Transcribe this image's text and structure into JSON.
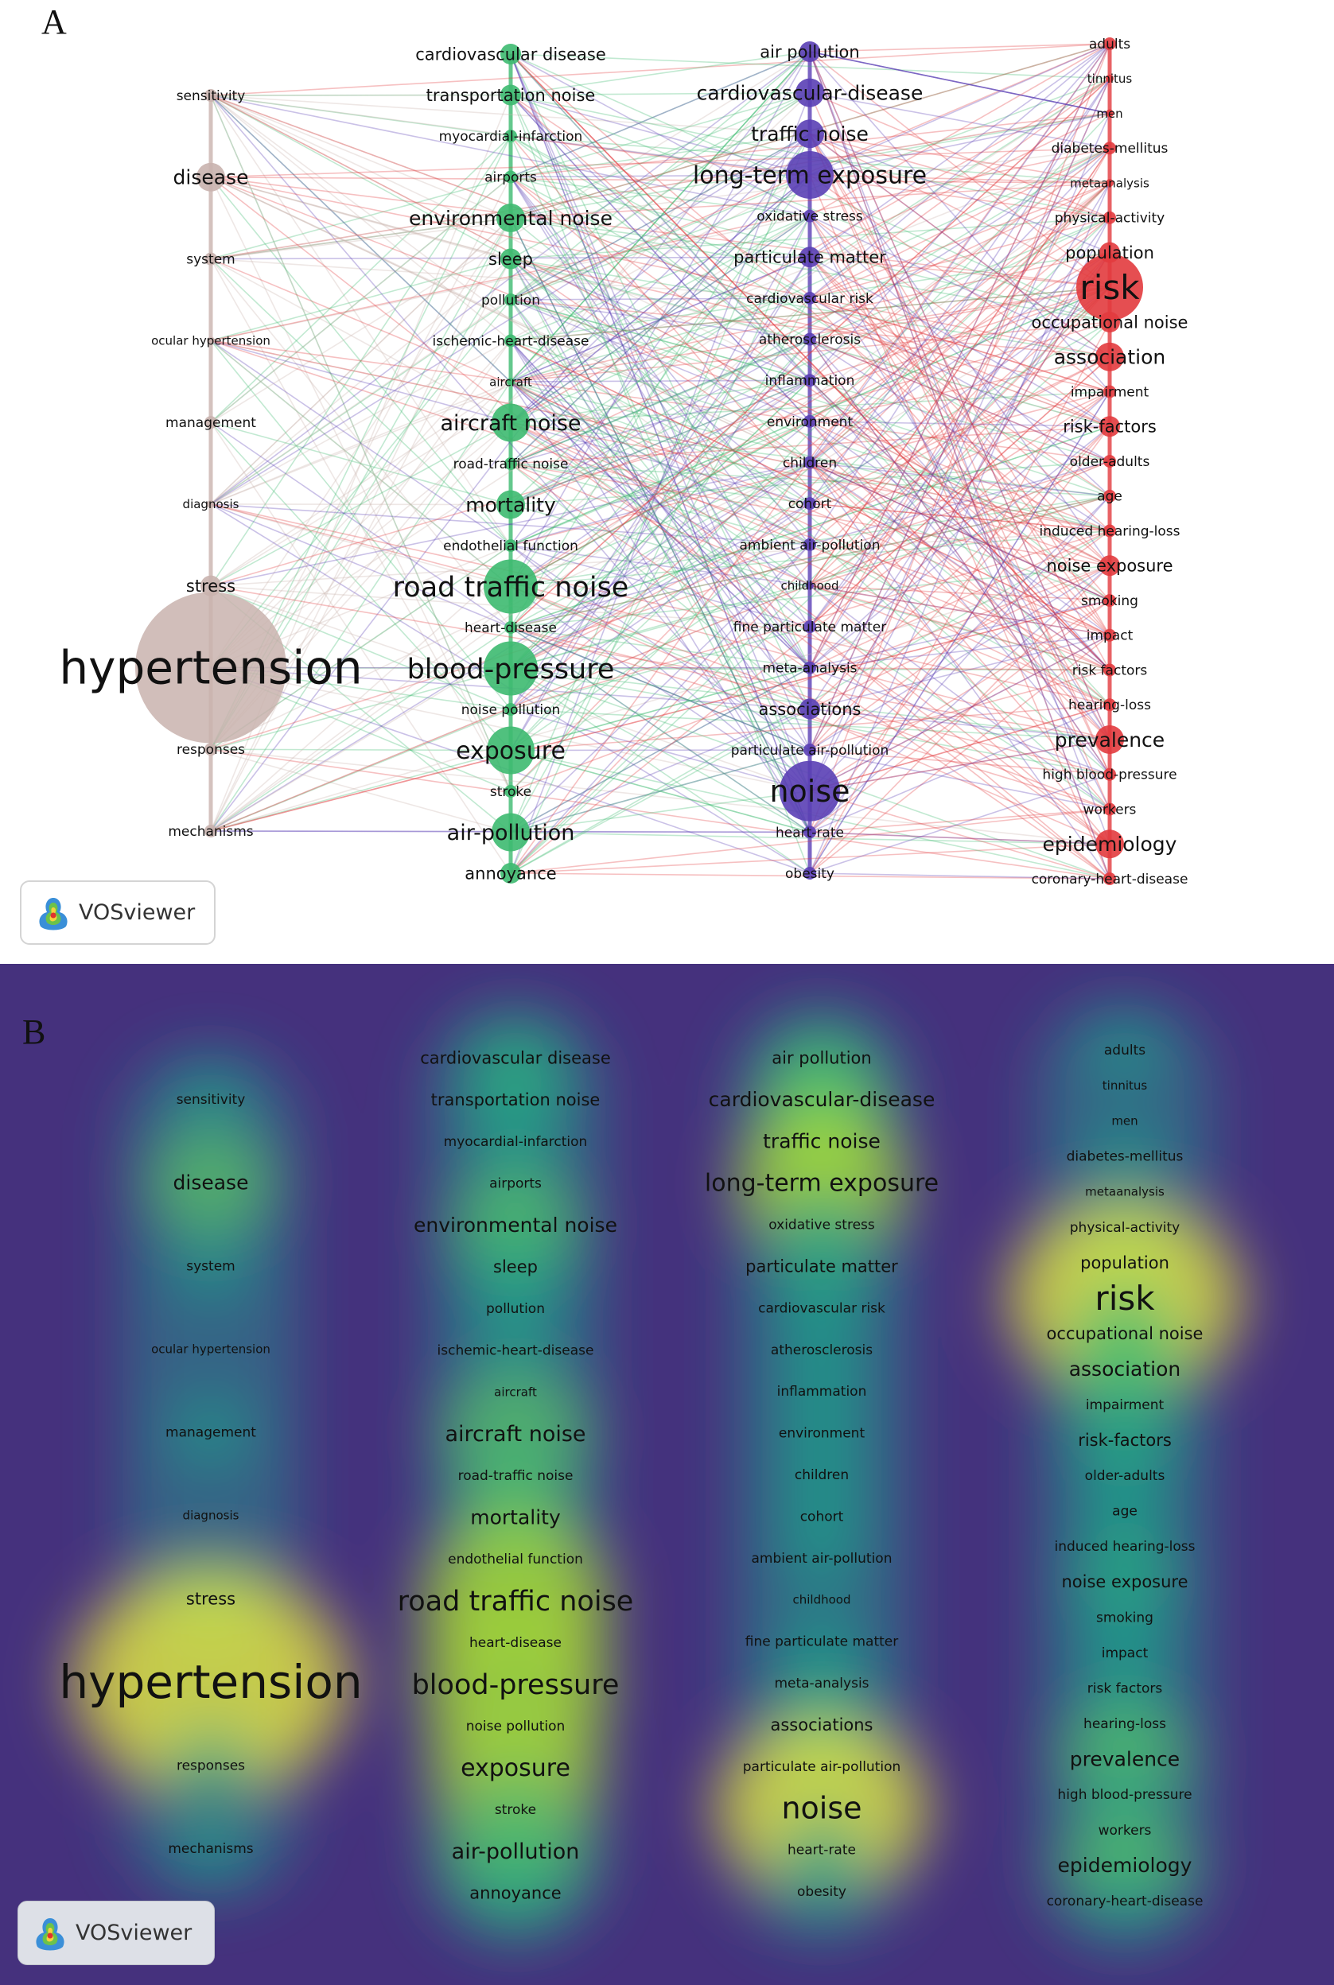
{
  "panels": {
    "A": {
      "letter": "A",
      "badge": "VOSviewer"
    },
    "B": {
      "letter": "B",
      "badge": "VOSviewer"
    }
  },
  "colors": {
    "cluster_brown": "#c9b3ae",
    "cluster_green": "#3dba70",
    "cluster_purple": "#5a3fb5",
    "cluster_red": "#e23b3e",
    "density_background": "#45317d",
    "density_peak": "#f4ee3a"
  },
  "clusters": [
    {
      "name": "brown",
      "items": [
        {
          "label": "sensitivity",
          "weight": 1
        },
        {
          "label": "disease",
          "weight": 3
        },
        {
          "label": "system",
          "weight": 1
        },
        {
          "label": "ocular hypertension",
          "weight": 0
        },
        {
          "label": "management",
          "weight": 1
        },
        {
          "label": "diagnosis",
          "weight": 0
        },
        {
          "label": "stress",
          "weight": 2
        },
        {
          "label": "hypertension",
          "weight": 10
        },
        {
          "label": "responses",
          "weight": 1
        },
        {
          "label": "mechanisms",
          "weight": 1
        }
      ]
    },
    {
      "name": "green",
      "items": [
        {
          "label": "cardiovascular disease",
          "weight": 2
        },
        {
          "label": "transportation noise",
          "weight": 2
        },
        {
          "label": "myocardial-infarction",
          "weight": 1
        },
        {
          "label": "airports",
          "weight": 1
        },
        {
          "label": "environmental noise",
          "weight": 3
        },
        {
          "label": "sleep",
          "weight": 2
        },
        {
          "label": "pollution",
          "weight": 1
        },
        {
          "label": "ischemic-heart-disease",
          "weight": 1
        },
        {
          "label": "aircraft",
          "weight": 0
        },
        {
          "label": "aircraft noise",
          "weight": 4
        },
        {
          "label": "road-traffic noise",
          "weight": 1
        },
        {
          "label": "mortality",
          "weight": 3
        },
        {
          "label": "endothelial function",
          "weight": 1
        },
        {
          "label": "road traffic noise",
          "weight": 6
        },
        {
          "label": "heart-disease",
          "weight": 1
        },
        {
          "label": "blood-pressure",
          "weight": 6
        },
        {
          "label": "noise pollution",
          "weight": 1
        },
        {
          "label": "exposure",
          "weight": 5
        },
        {
          "label": "stroke",
          "weight": 1
        },
        {
          "label": "air-pollution",
          "weight": 4
        },
        {
          "label": "annoyance",
          "weight": 2
        }
      ]
    },
    {
      "name": "purple",
      "items": [
        {
          "label": "air pollution",
          "weight": 2
        },
        {
          "label": "cardiovascular-disease",
          "weight": 3
        },
        {
          "label": "traffic noise",
          "weight": 3
        },
        {
          "label": "long-term exposure",
          "weight": 5
        },
        {
          "label": "oxidative stress",
          "weight": 1
        },
        {
          "label": "particulate matter",
          "weight": 2
        },
        {
          "label": "cardiovascular risk",
          "weight": 1
        },
        {
          "label": "atherosclerosis",
          "weight": 1
        },
        {
          "label": "inflammation",
          "weight": 1
        },
        {
          "label": "environment",
          "weight": 1
        },
        {
          "label": "children",
          "weight": 1
        },
        {
          "label": "cohort",
          "weight": 1
        },
        {
          "label": "ambient air-pollution",
          "weight": 1
        },
        {
          "label": "childhood",
          "weight": 0
        },
        {
          "label": "fine particulate matter",
          "weight": 1
        },
        {
          "label": "meta-analysis",
          "weight": 1
        },
        {
          "label": "associations",
          "weight": 2
        },
        {
          "label": "particulate air-pollution",
          "weight": 1
        },
        {
          "label": "noise",
          "weight": 7
        },
        {
          "label": "heart-rate",
          "weight": 1
        },
        {
          "label": "obesity",
          "weight": 1
        }
      ]
    },
    {
      "name": "red",
      "items": [
        {
          "label": "adults",
          "weight": 1
        },
        {
          "label": "tinnitus",
          "weight": 0
        },
        {
          "label": "men",
          "weight": 0
        },
        {
          "label": "diabetes-mellitus",
          "weight": 1
        },
        {
          "label": "metaanalysis",
          "weight": 0
        },
        {
          "label": "physical-activity",
          "weight": 1
        },
        {
          "label": "population",
          "weight": 2
        },
        {
          "label": "risk",
          "weight": 8
        },
        {
          "label": "occupational noise",
          "weight": 2
        },
        {
          "label": "association",
          "weight": 3
        },
        {
          "label": "impairment",
          "weight": 1
        },
        {
          "label": "risk-factors",
          "weight": 2
        },
        {
          "label": "older-adults",
          "weight": 1
        },
        {
          "label": "age",
          "weight": 1
        },
        {
          "label": "induced hearing-loss",
          "weight": 1
        },
        {
          "label": "noise exposure",
          "weight": 2
        },
        {
          "label": "smoking",
          "weight": 1
        },
        {
          "label": "impact",
          "weight": 1
        },
        {
          "label": "risk factors",
          "weight": 1
        },
        {
          "label": "hearing-loss",
          "weight": 1
        },
        {
          "label": "prevalence",
          "weight": 3
        },
        {
          "label": "high blood-pressure",
          "weight": 1
        },
        {
          "label": "workers",
          "weight": 1
        },
        {
          "label": "epidemiology",
          "weight": 3
        },
        {
          "label": "coronary-heart-disease",
          "weight": 1
        }
      ]
    }
  ]
}
